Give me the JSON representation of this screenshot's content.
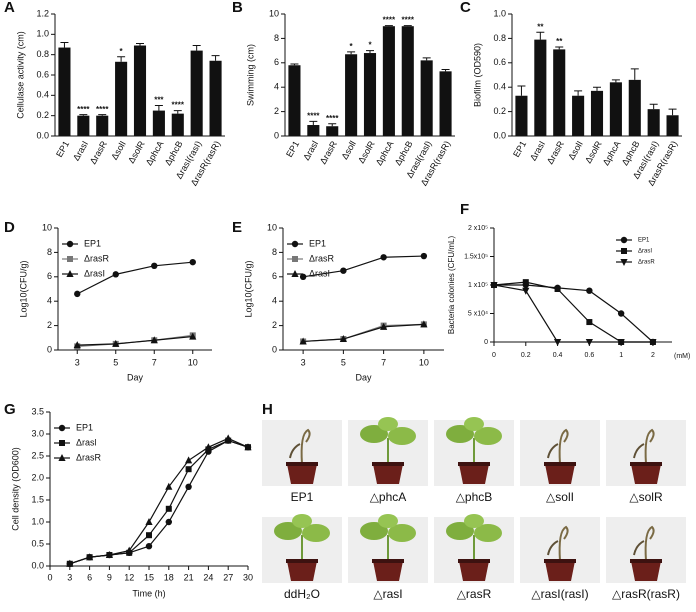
{
  "chart_data": [
    {
      "panel": "A",
      "type": "bar",
      "ylabel": "Cellulase activity (cm)",
      "categories": [
        "EP1",
        "ΔrasI",
        "ΔrasR",
        "ΔsolI",
        "ΔsolR",
        "ΔphcA",
        "ΔphcB",
        "ΔrasI(rasI)",
        "ΔrasR(rasR)"
      ],
      "values": [
        0.87,
        0.2,
        0.2,
        0.73,
        0.89,
        0.25,
        0.22,
        0.84,
        0.74
      ],
      "errors": [
        0.05,
        0.01,
        0.01,
        0.05,
        0.02,
        0.05,
        0.03,
        0.05,
        0.05
      ],
      "annotations": [
        null,
        "****",
        "****",
        "*",
        null,
        "***",
        "****",
        null,
        null
      ],
      "color": "#111111",
      "ylim": [
        0,
        1.2
      ],
      "yticks": [
        {
          "value": 0,
          "label": "0.0"
        },
        0.2,
        0.4,
        0.6,
        0.8,
        {
          "value": 1,
          "label": "1.0"
        },
        1.2
      ]
    },
    {
      "panel": "B",
      "type": "bar",
      "ylabel": "Swimming (cm)",
      "categories": [
        "EP1",
        "Δrasl",
        "ΔrasR",
        "Δsoll",
        "ΔsolR",
        "ΔphcA",
        "ΔphcB",
        "Δrasl(rasl)",
        "ΔrasR(rasR)"
      ],
      "values": [
        5.8,
        0.9,
        0.8,
        6.7,
        6.8,
        9.0,
        9.0,
        6.2,
        5.3
      ],
      "errors": [
        0.1,
        0.3,
        0.2,
        0.2,
        0.2,
        0.05,
        0.05,
        0.2,
        0.15
      ],
      "annotations": [
        null,
        "****",
        "****",
        "*",
        "*",
        "****",
        "****",
        null,
        null
      ],
      "color": "#111111",
      "ylim": [
        0,
        10
      ],
      "yticks": [
        0,
        2,
        4,
        6,
        8,
        10
      ]
    },
    {
      "panel": "C",
      "type": "bar",
      "ylabel": "Biofilm (OD590)",
      "categories": [
        "EP1",
        "ΔrasI",
        "ΔrasR",
        "ΔsolI",
        "ΔsolR",
        "ΔphcA",
        "ΔphcB",
        "ΔrasI(rasI)",
        "ΔrasR(rasR)"
      ],
      "values": [
        0.33,
        0.79,
        0.71,
        0.33,
        0.37,
        0.44,
        0.46,
        0.22,
        0.17
      ],
      "errors": [
        0.08,
        0.06,
        0.02,
        0.04,
        0.03,
        0.02,
        0.09,
        0.04,
        0.05
      ],
      "annotations": [
        null,
        "**",
        "**",
        null,
        null,
        null,
        null,
        null,
        null
      ],
      "color": "#111111",
      "ylim": [
        0,
        1
      ],
      "yticks": [
        {
          "value": 0,
          "label": "0.0"
        },
        0.2,
        0.4,
        0.6,
        0.8,
        {
          "value": 1,
          "label": "1.0"
        }
      ]
    },
    {
      "panel": "D",
      "type": "line",
      "xlabel": "Day",
      "ylabel": "Log10(CFU/g)",
      "legend": "upper left",
      "categories": [
        "3",
        "5",
        "7",
        "10"
      ],
      "series": [
        {
          "name": "EP1",
          "color": "#111111",
          "marker": "circle",
          "values": [
            4.6,
            6.2,
            6.9,
            7.2
          ]
        },
        {
          "name": "ΔrasR",
          "color": "#777777",
          "marker": "square",
          "values": [
            0.3,
            0.5,
            0.8,
            1.2
          ]
        },
        {
          "name": "ΔrasI",
          "color": "#111111",
          "marker": "triangle",
          "values": [
            0.4,
            0.5,
            0.8,
            1.1
          ]
        }
      ],
      "ylim": [
        0,
        10
      ],
      "yticks": [
        0,
        2,
        4,
        6,
        8,
        10
      ]
    },
    {
      "panel": "E",
      "type": "line",
      "xlabel": "Day",
      "ylabel": "Log10(CFU/g)",
      "legend": "upper left",
      "categories": [
        "3",
        "5",
        "7",
        "10"
      ],
      "series": [
        {
          "name": "EP1",
          "color": "#111111",
          "marker": "circle",
          "values": [
            6.0,
            6.5,
            7.6,
            7.7
          ]
        },
        {
          "name": "ΔrasR",
          "color": "#777777",
          "marker": "square",
          "values": [
            0.7,
            0.9,
            2.0,
            2.1
          ]
        },
        {
          "name": "ΔrasI",
          "color": "#111111",
          "marker": "triangle",
          "values": [
            0.7,
            0.9,
            1.9,
            2.1
          ]
        }
      ],
      "ylim": [
        0,
        10
      ],
      "yticks": [
        0,
        2,
        4,
        6,
        8,
        10
      ]
    },
    {
      "panel": "F",
      "type": "line",
      "xlabel": "(mM)",
      "ylabel": "Bacteria colonies (CFU/mL)",
      "legend": "upper right",
      "categories": [
        "0",
        "0.2",
        "0.4",
        "0.6",
        "1",
        "2"
      ],
      "series": [
        {
          "name": "EP1",
          "color": "#111111",
          "marker": "circle",
          "values": [
            100000,
            100000,
            95000,
            90000,
            50000,
            0
          ]
        },
        {
          "name": "ΔrasI",
          "color": "#111111",
          "marker": "square",
          "values": [
            100000,
            105000,
            93000,
            35000,
            0,
            0
          ]
        },
        {
          "name": "ΔrasR",
          "color": "#111111",
          "marker": "triangle-down",
          "values": [
            100000,
            90000,
            0,
            0,
            0,
            0
          ]
        }
      ],
      "ylim": [
        0,
        200000
      ],
      "yticks": [
        0,
        {
          "value": 50000,
          "label": "5 x10⁴"
        },
        {
          "value": 100000,
          "label": "1 x10⁵"
        },
        {
          "value": 150000,
          "label": "1.5x10⁵"
        },
        {
          "value": 200000,
          "label": "2 x10⁵"
        }
      ]
    },
    {
      "panel": "G",
      "type": "line",
      "xlabel": "Time (h)",
      "ylabel": "Cell density (OD600)",
      "legend": "upper left",
      "x": [
        3,
        6,
        9,
        12,
        15,
        18,
        21,
        24,
        27,
        30
      ],
      "series": [
        {
          "name": "EP1",
          "color": "#111111",
          "marker": "circle",
          "values": [
            0.05,
            0.2,
            0.25,
            0.3,
            0.45,
            1.0,
            1.8,
            2.6,
            2.85,
            2.7
          ]
        },
        {
          "name": "Δrasl",
          "color": "#111111",
          "marker": "square",
          "values": [
            0.05,
            0.2,
            0.25,
            0.3,
            0.7,
            1.3,
            2.2,
            2.65,
            2.85,
            2.7
          ]
        },
        {
          "name": "ΔrasR",
          "color": "#111111",
          "marker": "triangle",
          "values": [
            0.05,
            0.2,
            0.25,
            0.35,
            1.0,
            1.8,
            2.4,
            2.7,
            2.9,
            2.7
          ]
        }
      ],
      "xlim": [
        0,
        30
      ],
      "xticks": [
        0,
        3,
        6,
        9,
        12,
        15,
        18,
        21,
        24,
        27,
        30
      ],
      "ylim": [
        0,
        3.5
      ],
      "yticks": [
        {
          "value": 0,
          "label": "0.0"
        },
        0.5,
        {
          "value": 1,
          "label": "1.0"
        },
        1.5,
        {
          "value": 2,
          "label": "2.0"
        },
        2.5,
        {
          "value": 3,
          "label": "3.0"
        },
        3.5
      ]
    }
  ],
  "photos": {
    "panel": "H",
    "captions": [
      "EP1",
      "△phcA",
      "△phcB",
      "△solI",
      "△solR",
      "ddH₂O",
      "△rasI",
      "△rasR",
      "△rasI(rasI)",
      "△rasR(rasR)"
    ]
  }
}
